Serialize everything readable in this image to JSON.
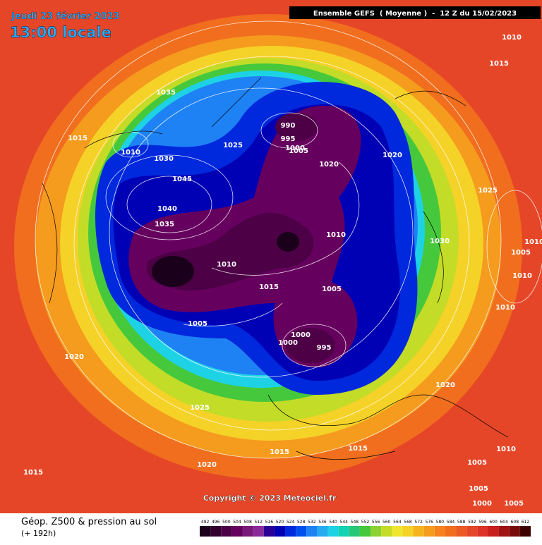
{
  "header": {
    "date": "Jeudi 23 février 2023",
    "time": "13:00 locale",
    "model": "Ensemble GEFS  ( Moyenne )  -  12 Z du 15/02/2023"
  },
  "copyright": "Copyright © 2023 Meteociel.fr",
  "caption": {
    "title": "Géop. Z500 & pression au sol",
    "lead": "(+ 192h)"
  },
  "pressure_labels": [
    1035,
    1015,
    1010,
    1030,
    1025,
    1045,
    1040,
    1035,
    990,
    995,
    1000,
    1005,
    1020,
    1020,
    1010,
    1015,
    1025,
    1030,
    1005,
    1010,
    1010,
    1010,
    1010,
    1010,
    1015,
    1005,
    1005,
    1000,
    1000,
    995,
    1020,
    1020,
    1025,
    1015,
    1015,
    1020,
    1015,
    1010,
    1005,
    1005,
    1000,
    1005
  ],
  "legend": {
    "values": [
      492,
      496,
      500,
      504,
      508,
      512,
      516,
      520,
      524,
      528,
      532,
      536,
      540,
      544,
      548,
      552,
      556,
      560,
      564,
      568,
      572,
      576,
      580,
      584,
      588,
      592,
      596,
      600,
      604,
      608,
      612
    ],
    "colors": [
      "#1a001a",
      "#33002e",
      "#4d0046",
      "#66005e",
      "#7a1a78",
      "#8c2a9a",
      "#2a0096",
      "#0000b4",
      "#0028dc",
      "#0050f0",
      "#1e82f5",
      "#28aaf0",
      "#1ed2e6",
      "#14d2b4",
      "#28c878",
      "#46c83c",
      "#8cd232",
      "#c3dc28",
      "#f0e632",
      "#f5d228",
      "#f5b41e",
      "#f59b1e",
      "#f5821e",
      "#f06e1e",
      "#eb5a23",
      "#e64628",
      "#dc3228",
      "#c81e1e",
      "#a01414",
      "#780a0a",
      "#3c0000"
    ]
  }
}
